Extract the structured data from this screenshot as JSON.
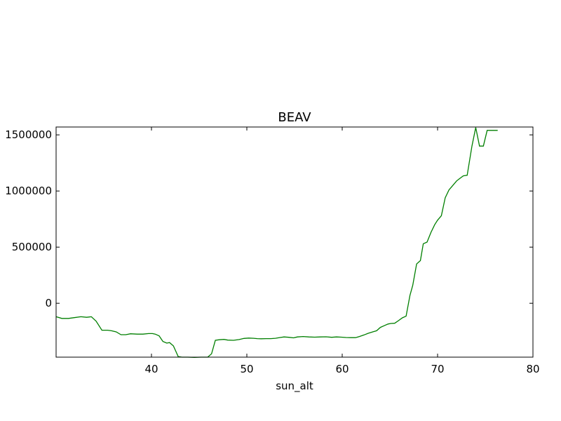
{
  "chart_data": {
    "type": "line",
    "title": "BEAV",
    "xlabel": "sun_alt",
    "ylabel": "",
    "xlim": [
      30,
      80
    ],
    "ylim": [
      -480000,
      1570000
    ],
    "xticks": [
      40,
      50,
      60,
      70,
      80
    ],
    "yticks": [
      0,
      500000,
      1000000,
      1500000
    ],
    "xtick_labels": [
      "40",
      "50",
      "60",
      "70",
      "80"
    ],
    "ytick_labels": [
      "0",
      "500000",
      "1000000",
      "1500000"
    ],
    "grid": false,
    "series_color": "#007f00",
    "series": [
      {
        "x": [
          30.0,
          30.6,
          31.3,
          31.9,
          32.6,
          33.2,
          33.7,
          34.2,
          34.8,
          35.4,
          35.8,
          36.3,
          36.8,
          37.3,
          37.8,
          38.5,
          39.1,
          39.7,
          40.1,
          40.4,
          40.8,
          41.2,
          41.6,
          41.9,
          42.3,
          42.8,
          43.2,
          43.8,
          44.5,
          45.2,
          45.9,
          46.3,
          46.7,
          47.1,
          47.6,
          48.0,
          48.6,
          49.2,
          49.7,
          50.2,
          50.7,
          51.1,
          51.5,
          52.0,
          52.5,
          53.0,
          53.5,
          53.9,
          54.4,
          54.9,
          55.3,
          55.9,
          56.5,
          57.1,
          57.7,
          58.3,
          58.9,
          59.4,
          59.9,
          60.4,
          60.9,
          61.4,
          61.8,
          62.3,
          62.7,
          63.2,
          63.6,
          64.0,
          64.4,
          64.8,
          65.1,
          65.5,
          65.9,
          66.3,
          66.7,
          67.1,
          67.4,
          67.8,
          68.2,
          68.5,
          68.9,
          69.3,
          69.7,
          70.0,
          70.4,
          70.8,
          71.2,
          71.6,
          72.0,
          72.3,
          72.7,
          73.1,
          73.6,
          74.0,
          74.4,
          74.8,
          75.2,
          75.6,
          76.0,
          76.3
        ],
        "y": [
          -120000,
          -135000,
          -135000,
          -128000,
          -120000,
          -125000,
          -120000,
          -160000,
          -240000,
          -240000,
          -245000,
          -255000,
          -280000,
          -280000,
          -272000,
          -275000,
          -275000,
          -270000,
          -270000,
          -275000,
          -290000,
          -340000,
          -355000,
          -350000,
          -380000,
          -475000,
          -480000,
          -480000,
          -482000,
          -480000,
          -480000,
          -450000,
          -330000,
          -325000,
          -322000,
          -328000,
          -330000,
          -323000,
          -313000,
          -310000,
          -312000,
          -315000,
          -316000,
          -315000,
          -315000,
          -312000,
          -305000,
          -300000,
          -303000,
          -308000,
          -300000,
          -296000,
          -300000,
          -302000,
          -300000,
          -299000,
          -303000,
          -300000,
          -302000,
          -305000,
          -306000,
          -306000,
          -296000,
          -282000,
          -268000,
          -255000,
          -245000,
          -215000,
          -200000,
          -185000,
          -180000,
          -178000,
          -155000,
          -130000,
          -115000,
          70000,
          160000,
          350000,
          380000,
          530000,
          545000,
          630000,
          700000,
          740000,
          780000,
          940000,
          1010000,
          1050000,
          1090000,
          1110000,
          1135000,
          1140000,
          1400000,
          1565000,
          1400000,
          1400000,
          1540000,
          1540000,
          1540000,
          1540000
        ]
      }
    ]
  }
}
